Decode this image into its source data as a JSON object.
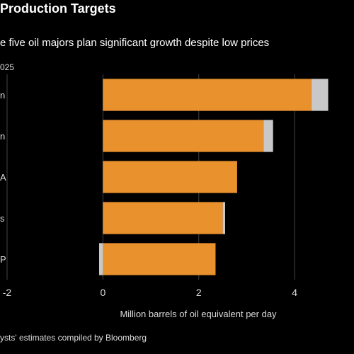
{
  "title": "Production Targets",
  "subtitle": "e five oil majors plan significant growth despite low prices",
  "year_label": "025",
  "footnote": "ysts' estimates compiled by Bloomberg",
  "chart_data": {
    "type": "bar",
    "orientation": "horizontal",
    "categories": [
      "n",
      "n",
      "A",
      "s",
      "P"
    ],
    "series": [
      {
        "values": [
          4.35,
          3.35,
          2.8,
          2.5,
          2.35
        ]
      },
      {
        "values": [
          0.35,
          0.2,
          0.0,
          0.05,
          -0.08
        ]
      }
    ],
    "xlabel": "Million barrels of oil equivalent per day",
    "ylabel": "",
    "xlim": [
      -2,
      4.5
    ],
    "xticks": [
      -2,
      0,
      2,
      4
    ],
    "xtick_labels": [
      "-2",
      "0",
      "2",
      "4"
    ],
    "grid": true,
    "legend": "none",
    "colors": {
      "primary": "#E8912D",
      "secondary": "#C8C8C8",
      "grid": "#444444",
      "text": "#dddddd"
    }
  }
}
